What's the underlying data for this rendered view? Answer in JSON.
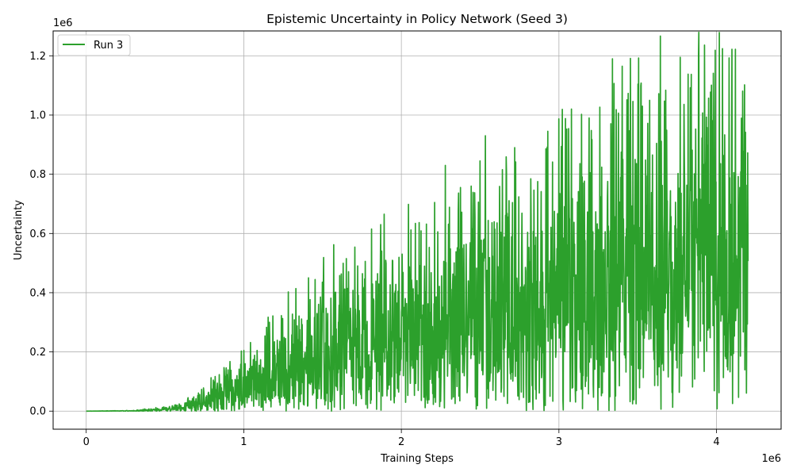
{
  "chart_data": {
    "type": "line",
    "title": "Epistemic Uncertainty in Policy Network (Seed 3)",
    "xlabel": "Training Steps",
    "ylabel": "Uncertainty",
    "x_offset_label": "1e6",
    "y_offset_label": "1e6",
    "xlim": [
      -210000,
      4410000
    ],
    "ylim": [
      -61000,
      1284000
    ],
    "xticks": [
      0,
      1000000,
      2000000,
      3000000,
      4000000
    ],
    "xtick_labels": [
      "0",
      "1",
      "2",
      "3",
      "4"
    ],
    "yticks": [
      0,
      200000,
      400000,
      600000,
      800000,
      1000000,
      1200000
    ],
    "ytick_labels": [
      "0.0",
      "0.2",
      "0.4",
      "0.6",
      "0.8",
      "1.0",
      "1.2"
    ],
    "grid": true,
    "legend_position": "top-left",
    "series": [
      {
        "name": "Run 3",
        "color": "#2ca02c",
        "generator": {
          "x_start": 0,
          "x_end": 4200000,
          "n_points": 2100,
          "envelope": [
            [
              0,
              0
            ],
            [
              300000,
              2000
            ],
            [
              500000,
              12000
            ],
            [
              700000,
              45000
            ],
            [
              900000,
              130000
            ],
            [
              1100000,
              210000
            ],
            [
              1300000,
              300000
            ],
            [
              1500000,
              380000
            ],
            [
              1700000,
              420000
            ],
            [
              1900000,
              560000
            ],
            [
              2100000,
              480000
            ],
            [
              2300000,
              600000
            ],
            [
              2500000,
              650000
            ],
            [
              2700000,
              720000
            ],
            [
              2900000,
              780000
            ],
            [
              3100000,
              860000
            ],
            [
              3300000,
              900000
            ],
            [
              3500000,
              930000
            ],
            [
              3700000,
              950000
            ],
            [
              3900000,
              980000
            ],
            [
              4100000,
              1000000
            ],
            [
              4200000,
              900000
            ]
          ],
          "peaks": [
            [
              1000000,
              205000
            ],
            [
              1410000,
              450000
            ],
            [
              1570000,
              562000
            ],
            [
              1650000,
              515000
            ],
            [
              1890000,
              665000
            ],
            [
              2060000,
              612000
            ],
            [
              2280000,
              830000
            ],
            [
              2500000,
              845000
            ],
            [
              2720000,
              890000
            ],
            [
              2930000,
              945000
            ],
            [
              3000000,
              987000
            ],
            [
              3080000,
              1020000
            ],
            [
              3340000,
              1190000
            ],
            [
              3530000,
              1030000
            ],
            [
              3770000,
              1195000
            ],
            [
              3820000,
              1138000
            ],
            [
              4080000,
              1193000
            ],
            [
              4120000,
              1222000
            ]
          ]
        }
      }
    ]
  }
}
